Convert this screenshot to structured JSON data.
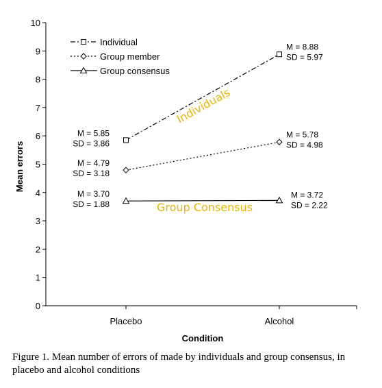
{
  "chart_data": {
    "type": "line",
    "categories": [
      "Placebo",
      "Alcohol"
    ],
    "xlabel": "Condition",
    "ylabel": "Mean errors",
    "ylim": [
      0,
      10
    ],
    "yticks": [
      "0",
      "1",
      "2",
      "3",
      "4",
      "5",
      "6",
      "7",
      "8",
      "9",
      "10"
    ],
    "grid": false,
    "legend_position": "top-left",
    "series": [
      {
        "name": "Individual",
        "values": [
          5.85,
          8.88
        ],
        "marker": "square",
        "line_style": "dash-dot",
        "labels": [
          {
            "m": "M = 5.85",
            "sd": "SD = 3.86"
          },
          {
            "m": "M = 8.88",
            "sd": "SD = 5.97"
          }
        ]
      },
      {
        "name": "Group member",
        "values": [
          4.79,
          5.78
        ],
        "marker": "diamond",
        "line_style": "dotted",
        "labels": [
          {
            "m": "M = 4.79",
            "sd": "SD = 3.18"
          },
          {
            "m": "M = 5.78",
            "sd": "SD = 4.98"
          }
        ]
      },
      {
        "name": "Group consensus",
        "values": [
          3.7,
          3.72
        ],
        "marker": "triangle",
        "line_style": "solid",
        "labels": [
          {
            "m": "M = 3.70",
            "sd": "SD = 1.88"
          },
          {
            "m": "M = 3.72",
            "sd": "SD = 2.22"
          }
        ]
      }
    ],
    "annotations": [
      {
        "text": "Individuals",
        "color": "#e8b400"
      },
      {
        "text": "Group Consensus",
        "color": "#e8b400"
      }
    ]
  },
  "caption": "Figure 1. Mean number of errors of made by individuals and group consensus, in placebo and alcohol conditions"
}
